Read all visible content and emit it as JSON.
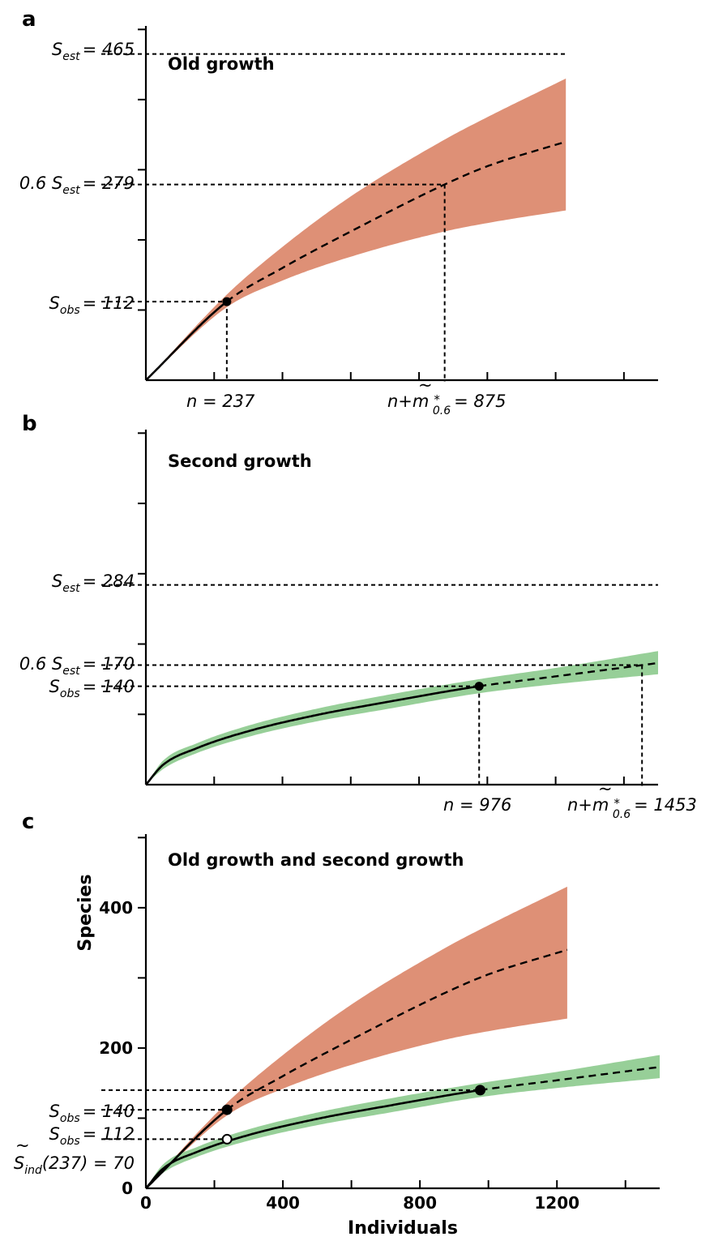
{
  "chart_data": [
    {
      "type": "line",
      "panel_label": "a",
      "title": "Old growth",
      "x_axis": {
        "range": [
          0,
          1500
        ],
        "tick_values": [
          200,
          400,
          600,
          800,
          1000,
          1200,
          1400
        ]
      },
      "y_axis": {
        "range": [
          0,
          500
        ],
        "tick_values": [
          100,
          200,
          300,
          400,
          500
        ]
      },
      "series": [
        {
          "color": "#de9076",
          "observed_end": 237,
          "extrapolated_end": 1230,
          "curve": {
            "x": [
              0,
              237,
              400,
              600,
              875,
              1000,
              1230
            ],
            "y": [
              0,
              112,
              160,
              212,
              279,
              305,
              340
            ]
          },
          "band_upper": {
            "x": [
              0,
              237,
              400,
              600,
              875,
              1000,
              1230
            ],
            "y": [
              0,
              122,
              190,
              262,
              343,
              375,
              430
            ]
          },
          "band_lower": {
            "x": [
              0,
              237,
              400,
              600,
              875,
              1000,
              1230
            ],
            "y": [
              0,
              104,
              142,
              176,
              212,
              224,
              242
            ]
          }
        }
      ],
      "reference_lines": [
        {
          "label": "S_est = 465",
          "y": 465
        },
        {
          "label": "0.6 S_est = 279",
          "y": 279,
          "x_drop": 875
        },
        {
          "label": "S_obs = 112",
          "y": 112,
          "x_drop": 237
        }
      ],
      "annotations": {
        "s_est": {
          "sym": "S",
          "sub": "est",
          "val": "= 465"
        },
        "target": {
          "pre": "0.6 S",
          "sub": "est",
          "val": "= 279"
        },
        "s_obs": {
          "sym": "S",
          "sub": "obs",
          "val": "= 112"
        },
        "n": "n = 237",
        "m": {
          "pre": "n+",
          "m": "m",
          "tilde": "~",
          "star": "*",
          "sub": "0.6",
          "val": "= 875"
        }
      }
    },
    {
      "type": "line",
      "panel_label": "b",
      "title": "Second growth",
      "x_axis": {
        "range": [
          0,
          1500
        ],
        "tick_values": [
          200,
          400,
          600,
          800,
          1000,
          1200,
          1400
        ]
      },
      "y_axis": {
        "range": [
          0,
          500
        ],
        "tick_values": [
          100,
          200,
          300,
          400,
          500
        ]
      },
      "series": [
        {
          "color": "#97cf98",
          "observed_end": 976,
          "extrapolated_end": 1500,
          "curve": {
            "x": [
              0,
              50,
              150,
              300,
              500,
              700,
              976,
              1200,
              1453,
              1500
            ],
            "y": [
              0,
              28,
              52,
              76,
              99,
              117,
              140,
              154,
              170,
              173
            ]
          },
          "band_upper": {
            "x": [
              0,
              50,
              150,
              300,
              500,
              700,
              976,
              1200,
              1500
            ],
            "y": [
              0,
              34,
              59,
              84,
              108,
              127,
              150,
              166,
              190
            ]
          },
          "band_lower": {
            "x": [
              0,
              50,
              150,
              300,
              500,
              700,
              976,
              1200,
              1500
            ],
            "y": [
              0,
              22,
              45,
              68,
              90,
              107,
              130,
              143,
              157
            ]
          }
        }
      ],
      "reference_lines": [
        {
          "label": "S_est = 284",
          "y": 284
        },
        {
          "label": "0.6 S_est = 170",
          "y": 170,
          "x_drop": 1453
        },
        {
          "label": "S_obs = 140",
          "y": 140,
          "x_drop": 976
        }
      ],
      "annotations": {
        "s_est": {
          "sym": "S",
          "sub": "est",
          "val": "= 284"
        },
        "target": {
          "pre": "0.6 S",
          "sub": "est",
          "val": "= 170"
        },
        "s_obs": {
          "sym": "S",
          "sub": "obs",
          "val": "= 140"
        },
        "n": "n = 976",
        "m": {
          "pre": "n+",
          "m": "m",
          "tilde": "~",
          "star": "*",
          "sub": "0.6",
          "val": "= 1453"
        }
      }
    },
    {
      "type": "line",
      "panel_label": "c",
      "title": "Old growth and second growth",
      "xlabel": "Individuals",
      "ylabel": "Species",
      "x_axis": {
        "range": [
          0,
          1500
        ],
        "tick_values": [
          0,
          200,
          400,
          600,
          800,
          1000,
          1200,
          1400
        ],
        "labels": [
          "0",
          "400",
          "800",
          "1200"
        ],
        "label_values": [
          0,
          400,
          800,
          1200
        ]
      },
      "y_axis": {
        "range": [
          0,
          500
        ],
        "tick_values": [
          0,
          100,
          200,
          300,
          400,
          500
        ],
        "labels": [
          "0",
          "200",
          "400"
        ],
        "label_values": [
          0,
          200,
          400
        ]
      },
      "series": [
        {
          "color": "#de9076",
          "observed_end": 237,
          "extrapolated_end": 1230,
          "curve": {
            "x": [
              0,
              237,
              400,
              600,
              875,
              1000,
              1230
            ],
            "y": [
              0,
              112,
              160,
              212,
              279,
              305,
              340
            ]
          },
          "band_upper": {
            "x": [
              0,
              237,
              400,
              600,
              875,
              1000,
              1230
            ],
            "y": [
              0,
              122,
              190,
              262,
              343,
              375,
              430
            ]
          },
          "band_lower": {
            "x": [
              0,
              237,
              400,
              600,
              875,
              1000,
              1230
            ],
            "y": [
              0,
              104,
              142,
              176,
              212,
              224,
              242
            ]
          }
        },
        {
          "color": "#97cf98",
          "observed_end": 976,
          "extrapolated_end": 1500,
          "curve": {
            "x": [
              0,
              50,
              150,
              300,
              500,
              700,
              976,
              1200,
              1453,
              1500
            ],
            "y": [
              0,
              28,
              52,
              76,
              99,
              117,
              140,
              154,
              170,
              173
            ]
          },
          "band_upper": {
            "x": [
              0,
              50,
              150,
              300,
              500,
              700,
              976,
              1200,
              1500
            ],
            "y": [
              0,
              34,
              59,
              84,
              108,
              127,
              150,
              166,
              190
            ]
          },
          "band_lower": {
            "x": [
              0,
              50,
              150,
              300,
              500,
              700,
              976,
              1200,
              1500
            ],
            "y": [
              0,
              22,
              45,
              68,
              90,
              107,
              130,
              143,
              157
            ]
          }
        }
      ],
      "reference_lines": [
        {
          "label": "S_obs = 140",
          "y": 140,
          "x_end": 976
        },
        {
          "label": "S_obs = 112",
          "y": 112,
          "x_end": 237
        },
        {
          "label": "S~_ind(237) = 70",
          "y": 70,
          "x_end": 237
        }
      ],
      "markers": [
        {
          "x": 237,
          "y": 112,
          "filled": true
        },
        {
          "x": 976,
          "y": 140,
          "filled": true
        },
        {
          "x": 237,
          "y": 70,
          "filled": false
        }
      ],
      "annotations": {
        "obs_second": {
          "sym": "S",
          "sub": "obs",
          "val": "= 140"
        },
        "obs_old": {
          "sym": "S",
          "sub": "obs",
          "val": "= 112"
        },
        "ind": {
          "sym": "S",
          "tilde": "~",
          "sub": "ind",
          "val": "(237) = 70"
        }
      }
    }
  ]
}
